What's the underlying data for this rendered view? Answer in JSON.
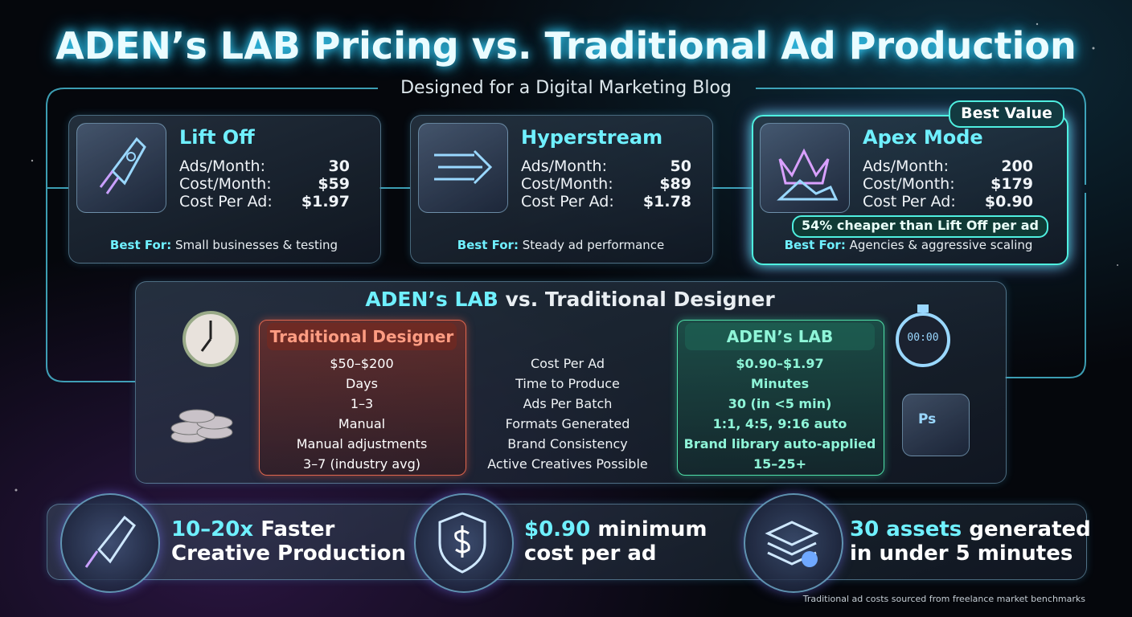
{
  "title": "ADEN’s LAB Pricing vs. Traditional Ad Production",
  "subtitle": "Designed for a Digital Marketing Blog",
  "plans": [
    {
      "name": "Lift Off",
      "rows": [
        {
          "label": "Ads/Month:",
          "value": "30"
        },
        {
          "label": "Cost/Month:",
          "value": "$59"
        },
        {
          "label": "Cost Per Ad:",
          "value": "$1.97"
        }
      ],
      "best_for_label": "Best For:",
      "best_for": "Small businesses & testing"
    },
    {
      "name": "Hyperstream",
      "rows": [
        {
          "label": "Ads/Month:",
          "value": "50"
        },
        {
          "label": "Cost/Month:",
          "value": "$89"
        },
        {
          "label": "Cost Per Ad:",
          "value": "$1.78"
        }
      ],
      "best_for_label": "Best For:",
      "best_for": "Steady ad performance"
    },
    {
      "name": "Apex Mode",
      "badge": "Best Value",
      "note": "54% cheaper than Lift Off per ad",
      "rows": [
        {
          "label": "Ads/Month:",
          "value": "200"
        },
        {
          "label": "Cost/Month:",
          "value": "$179"
        },
        {
          "label": "Cost Per Ad:",
          "value": "$0.90"
        }
      ],
      "best_for_label": "Best For:",
      "best_for": "Agencies & aggressive scaling"
    }
  ],
  "comparison": {
    "title_highlight": "ADEN’s LAB",
    "title_rest": "vs. Traditional Designer",
    "traditional_header": "Traditional Designer",
    "aden_header": "ADEN’s LAB",
    "rows": [
      {
        "traditional": "$50–$200",
        "metric": "Cost Per Ad",
        "aden": "$0.90–$1.97"
      },
      {
        "traditional": "Days",
        "metric": "Time to Produce",
        "aden": "Minutes"
      },
      {
        "traditional": "1–3",
        "metric": "Ads Per Batch",
        "aden": "30 (in <5 min)"
      },
      {
        "traditional": "Manual",
        "metric": "Formats Generated",
        "aden": "1:1, 4:5, 9:16 auto"
      },
      {
        "traditional": "Manual adjustments",
        "metric": "Brand Consistency",
        "aden": "Brand library auto-applied"
      },
      {
        "traditional": "3–7 (industry avg)",
        "metric": "Active Creatives Possible",
        "aden": "15–25+"
      }
    ],
    "stopwatch_display": "00:00",
    "app_icon": "Ps"
  },
  "features": [
    {
      "highlight": "10–20x",
      "text": "Faster",
      "line2": "Creative Production"
    },
    {
      "highlight": "$0.90",
      "text": "minimum",
      "line2": "cost per ad"
    },
    {
      "highlight": "30 assets",
      "text": "generated",
      "line2": "in under 5 minutes"
    }
  ],
  "footnote": "Traditional ad costs sourced from freelance market benchmarks"
}
